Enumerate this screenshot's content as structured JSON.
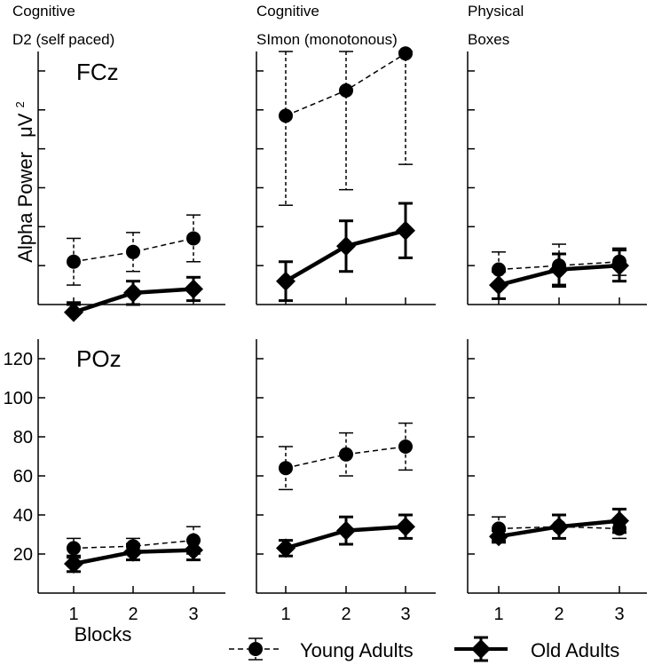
{
  "chart_data": {
    "type": "line",
    "ylabel": "Alpha Power",
    "yunit": "μV",
    "yunit_superscript": "2",
    "xlabel": "Blocks",
    "categories": [
      "1",
      "2",
      "3"
    ],
    "ylim": [
      0,
      130
    ],
    "yticks": [
      20,
      40,
      60,
      80,
      100,
      120
    ],
    "legend": {
      "position": "bottom",
      "young": "Young Adults",
      "old": "Old Adults"
    },
    "columns": [
      {
        "category": "Cognitive",
        "task": "D2 (self paced)"
      },
      {
        "category": "Cognitive",
        "task": "SImon (monotonous)"
      },
      {
        "category": "Physical",
        "task": "Boxes"
      }
    ],
    "rows": [
      {
        "label": "FCz"
      },
      {
        "label": "POz"
      }
    ],
    "panels": [
      {
        "row": 0,
        "col": 0,
        "series": [
          {
            "name": "Young Adults",
            "values": [
              22,
              27,
              34
            ],
            "err": [
              12,
              10,
              12
            ]
          },
          {
            "name": "Old Adults",
            "values": [
              -4,
              6,
              8
            ],
            "err": [
              5,
              6,
              6
            ]
          }
        ]
      },
      {
        "row": 0,
        "col": 1,
        "series": [
          {
            "name": "Young Adults",
            "values": [
              97,
              110,
              129
            ],
            "err": [
              46,
              51,
              57
            ]
          },
          {
            "name": "Old Adults",
            "values": [
              12,
              30,
              38
            ],
            "err": [
              10,
              13,
              14
            ]
          }
        ]
      },
      {
        "row": 0,
        "col": 2,
        "series": [
          {
            "name": "Young Adults",
            "values": [
              18,
              20,
              22
            ],
            "err": [
              9,
              11,
              7
            ]
          },
          {
            "name": "Old Adults",
            "values": [
              10,
              18,
              20
            ],
            "err": [
              7,
              8,
              8
            ]
          }
        ]
      },
      {
        "row": 1,
        "col": 0,
        "series": [
          {
            "name": "Young Adults",
            "values": [
              23,
              24,
              27
            ],
            "err": [
              5,
              4,
              7
            ]
          },
          {
            "name": "Old Adults",
            "values": [
              15,
              21,
              22
            ],
            "err": [
              4,
              4,
              5
            ]
          }
        ]
      },
      {
        "row": 1,
        "col": 1,
        "series": [
          {
            "name": "Young Adults",
            "values": [
              64,
              71,
              75
            ],
            "err": [
              11,
              11,
              12
            ]
          },
          {
            "name": "Old Adults",
            "values": [
              23,
              32,
              34
            ],
            "err": [
              4,
              7,
              6
            ]
          }
        ]
      },
      {
        "row": 1,
        "col": 2,
        "series": [
          {
            "name": "Young Adults",
            "values": [
              33,
              34,
              33
            ],
            "err": [
              6,
              6,
              5
            ]
          },
          {
            "name": "Old Adults",
            "values": [
              29,
              34,
              37
            ],
            "err": [
              3,
              6,
              6
            ]
          }
        ]
      }
    ]
  }
}
